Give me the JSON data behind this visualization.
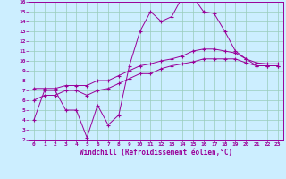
{
  "title": "",
  "xlabel": "Windchill (Refroidissement éolien,°C)",
  "xlim": [
    -0.5,
    23.5
  ],
  "ylim": [
    2,
    16
  ],
  "xticks": [
    0,
    1,
    2,
    3,
    4,
    5,
    6,
    7,
    8,
    9,
    10,
    11,
    12,
    13,
    14,
    15,
    16,
    17,
    18,
    19,
    20,
    21,
    22,
    23
  ],
  "yticks": [
    2,
    3,
    4,
    5,
    6,
    7,
    8,
    9,
    10,
    11,
    12,
    13,
    14,
    15,
    16
  ],
  "bg_color": "#cceeff",
  "grid_color": "#99ccbb",
  "line_color": "#990099",
  "line1_x": [
    0,
    1,
    2,
    3,
    4,
    5,
    6,
    7,
    8,
    9,
    10,
    11,
    12,
    13,
    14,
    15,
    16,
    17,
    18,
    19,
    20,
    21,
    22,
    23
  ],
  "line1_y": [
    4,
    7,
    7,
    5,
    5,
    2.2,
    5.5,
    3.5,
    4.5,
    9.5,
    13,
    15,
    14,
    14.5,
    16.5,
    16.5,
    15,
    14.8,
    13,
    11,
    10.2,
    9.5,
    9.5,
    9.5
  ],
  "line2_x": [
    0,
    1,
    2,
    3,
    4,
    5,
    6,
    7,
    8,
    9,
    10,
    11,
    12,
    13,
    14,
    15,
    16,
    17,
    18,
    19,
    20,
    21,
    22,
    23
  ],
  "line2_y": [
    7.2,
    7.2,
    7.2,
    7.5,
    7.5,
    7.5,
    8.0,
    8.0,
    8.5,
    9.0,
    9.5,
    9.7,
    10.0,
    10.2,
    10.5,
    11.0,
    11.2,
    11.2,
    11.0,
    10.8,
    10.2,
    9.8,
    9.7,
    9.7
  ],
  "line3_x": [
    0,
    1,
    2,
    3,
    4,
    5,
    6,
    7,
    8,
    9,
    10,
    11,
    12,
    13,
    14,
    15,
    16,
    17,
    18,
    19,
    20,
    21,
    22,
    23
  ],
  "line3_y": [
    6.0,
    6.5,
    6.5,
    7.0,
    7.0,
    6.5,
    7.0,
    7.2,
    7.7,
    8.2,
    8.7,
    8.7,
    9.2,
    9.5,
    9.7,
    9.9,
    10.2,
    10.2,
    10.2,
    10.2,
    9.8,
    9.5,
    9.5,
    9.5
  ]
}
